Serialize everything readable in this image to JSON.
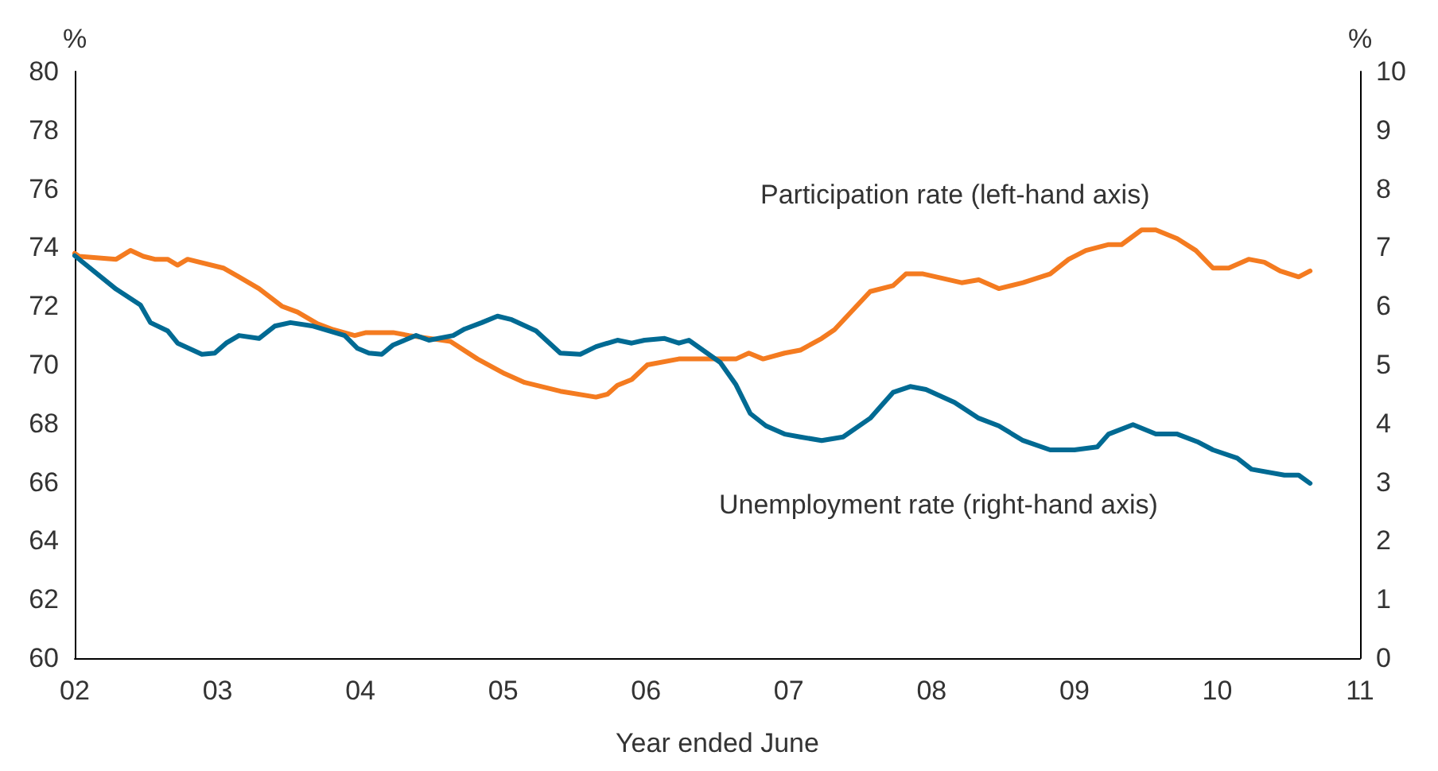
{
  "chart_data": {
    "type": "line",
    "xlabel": "Year ended June",
    "ylabel": "%",
    "y2label": "%",
    "xlim": [
      2,
      11
    ],
    "xticks": [
      {
        "value": 2,
        "label": "02"
      },
      {
        "value": 3,
        "label": "03"
      },
      {
        "value": 4,
        "label": "04"
      },
      {
        "value": 5,
        "label": "05"
      },
      {
        "value": 6,
        "label": "06"
      },
      {
        "value": 7,
        "label": "07"
      },
      {
        "value": 8,
        "label": "08"
      },
      {
        "value": 9,
        "label": "09"
      },
      {
        "value": 10,
        "label": "10"
      },
      {
        "value": 11,
        "label": "11"
      }
    ],
    "ylim": [
      60,
      80
    ],
    "yticks": [
      60,
      62,
      64,
      66,
      68,
      70,
      72,
      74,
      76,
      78,
      80
    ],
    "y2lim": [
      0,
      10
    ],
    "y2ticks": [
      0,
      1,
      2,
      3,
      4,
      5,
      6,
      7,
      8,
      9,
      10
    ],
    "grid": false,
    "legend": false,
    "marker": "none",
    "line_style": "solid",
    "series": [
      {
        "name": "Participation rate (left-hand axis)",
        "color": "#f47b20",
        "x": [
          2.0,
          2.03,
          2.29,
          2.39,
          2.48,
          2.56,
          2.65,
          2.72,
          2.79,
          3.04,
          3.15,
          3.29,
          3.45,
          3.56,
          3.7,
          3.81,
          3.96,
          4.04,
          4.23,
          4.34,
          4.63,
          4.82,
          5.01,
          5.15,
          5.4,
          5.65,
          5.73,
          5.8,
          5.9,
          6.01,
          6.23,
          6.52,
          6.63,
          6.72,
          6.82,
          6.97,
          7.08,
          7.23,
          7.32,
          7.57,
          7.73,
          7.82,
          7.94,
          8.21,
          8.33,
          8.47,
          8.64,
          8.83,
          8.96,
          9.08,
          9.24,
          9.33,
          9.47,
          9.57,
          9.72,
          9.85,
          9.97,
          10.08,
          10.22,
          10.33,
          10.44,
          10.57,
          10.65
        ],
        "values": [
          73.8,
          73.7,
          73.6,
          73.9,
          73.7,
          73.6,
          73.6,
          73.4,
          73.6,
          73.3,
          73.0,
          72.6,
          72.0,
          71.8,
          71.4,
          71.2,
          71.0,
          71.1,
          71.1,
          71.0,
          70.8,
          70.2,
          69.7,
          69.4,
          69.1,
          68.9,
          69.0,
          69.3,
          69.5,
          70.0,
          70.2,
          70.2,
          70.2,
          70.4,
          70.2,
          70.4,
          70.5,
          70.9,
          71.2,
          72.5,
          72.7,
          73.1,
          73.1,
          72.8,
          72.9,
          72.6,
          72.8,
          73.1,
          73.6,
          73.9,
          74.1,
          74.1,
          74.6,
          74.6,
          74.3,
          73.9,
          73.3,
          73.3,
          73.6,
          73.5,
          73.2,
          73.0,
          73.2
        ]
      },
      {
        "name": "Unemployment rate (right-hand axis)",
        "color": "#006a93",
        "axis": "y2",
        "x": [
          2.0,
          2.29,
          2.46,
          2.53,
          2.65,
          2.72,
          2.89,
          2.98,
          3.06,
          3.15,
          3.29,
          3.4,
          3.51,
          3.67,
          3.89,
          3.98,
          4.06,
          4.15,
          4.23,
          4.39,
          4.48,
          4.65,
          4.73,
          4.85,
          4.96,
          5.06,
          5.23,
          5.4,
          5.54,
          5.65,
          5.8,
          5.9,
          5.99,
          6.13,
          6.23,
          6.3,
          6.52,
          6.63,
          6.73,
          6.84,
          6.97,
          7.08,
          7.23,
          7.38,
          7.57,
          7.73,
          7.85,
          7.96,
          8.16,
          8.33,
          8.47,
          8.64,
          8.83,
          9.0,
          9.16,
          9.24,
          9.41,
          9.57,
          9.72,
          9.86,
          9.97,
          10.14,
          10.24,
          10.47,
          10.57,
          10.65
        ],
        "values": [
          6.86,
          6.29,
          6.02,
          5.72,
          5.58,
          5.37,
          5.18,
          5.2,
          5.37,
          5.5,
          5.45,
          5.66,
          5.72,
          5.66,
          5.5,
          5.28,
          5.2,
          5.18,
          5.34,
          5.5,
          5.42,
          5.5,
          5.61,
          5.72,
          5.83,
          5.77,
          5.58,
          5.2,
          5.18,
          5.31,
          5.42,
          5.37,
          5.42,
          5.45,
          5.37,
          5.42,
          5.04,
          4.66,
          4.17,
          3.96,
          3.82,
          3.77,
          3.71,
          3.77,
          4.09,
          4.53,
          4.63,
          4.58,
          4.36,
          4.09,
          3.96,
          3.71,
          3.55,
          3.55,
          3.6,
          3.82,
          3.98,
          3.82,
          3.82,
          3.69,
          3.55,
          3.41,
          3.22,
          3.12,
          3.12,
          2.98
        ]
      }
    ]
  }
}
